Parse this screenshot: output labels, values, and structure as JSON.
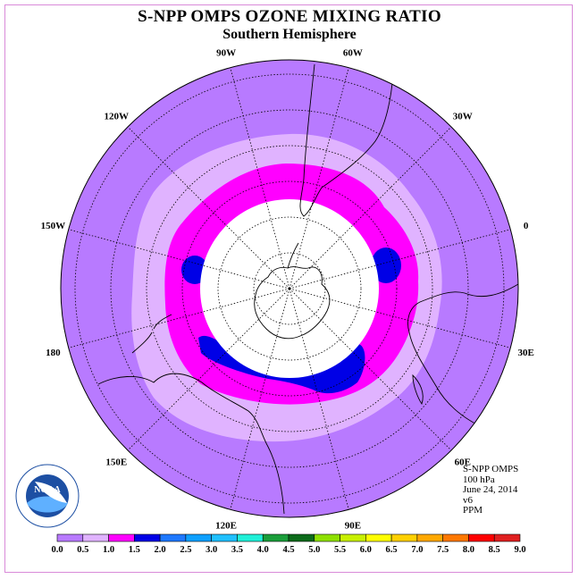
{
  "title": "S-NPP OMPS OZONE MIXING RATIO",
  "subtitle": "Southern Hemisphere",
  "info": {
    "product": "S-NPP OMPS",
    "level": "100 hPa",
    "date": "June 24, 2014",
    "version": "v6",
    "units": "PPM"
  },
  "logo_text": {
    "agency": "NOAA",
    "ring_text": "NATIONAL OCEANIC AND ATMOSPHERIC ADMINISTRATION · U.S. DEPARTMENT OF COMMERCE"
  },
  "longitude_labels": [
    {
      "text": "90W",
      "angle": -90
    },
    {
      "text": "60W",
      "angle": -60
    },
    {
      "text": "30W",
      "angle": -30
    },
    {
      "text": "0",
      "angle": 0
    },
    {
      "text": "30E",
      "angle": 30
    },
    {
      "text": "60E",
      "angle": 60
    },
    {
      "text": "90E",
      "angle": 90
    },
    {
      "text": "120E",
      "angle": 120
    },
    {
      "text": "150E",
      "angle": 150
    },
    {
      "text": "180",
      "angle": 180
    },
    {
      "text": "150W",
      "angle": 210
    },
    {
      "text": "120W",
      "angle": 240
    }
  ],
  "colorbar": {
    "ticks": [
      "0.0",
      "0.5",
      "1.0",
      "1.5",
      "2.0",
      "2.5",
      "3.0",
      "3.5",
      "4.0",
      "4.5",
      "5.0",
      "5.5",
      "6.0",
      "6.5",
      "7.0",
      "7.5",
      "8.0",
      "8.5",
      "9.0"
    ],
    "colors": [
      "#b87aff",
      "#e0b3ff",
      "#ff00ff",
      "#0000e6",
      "#1e78ff",
      "#0ea0ff",
      "#20c0ff",
      "#20f0d8",
      "#1a9e3a",
      "#0c6b1a",
      "#8ee000",
      "#c8f000",
      "#ffff00",
      "#ffd000",
      "#ffa800",
      "#ff7800",
      "#ff0000",
      "#e02020",
      "#8b5a2b"
    ]
  },
  "field_colors": {
    "background": "#b87aff",
    "ring_light": "#e0b3ff",
    "ring_magenta": "#ff00ff",
    "blue": "#0000e6",
    "no_data": "#ffffff"
  }
}
